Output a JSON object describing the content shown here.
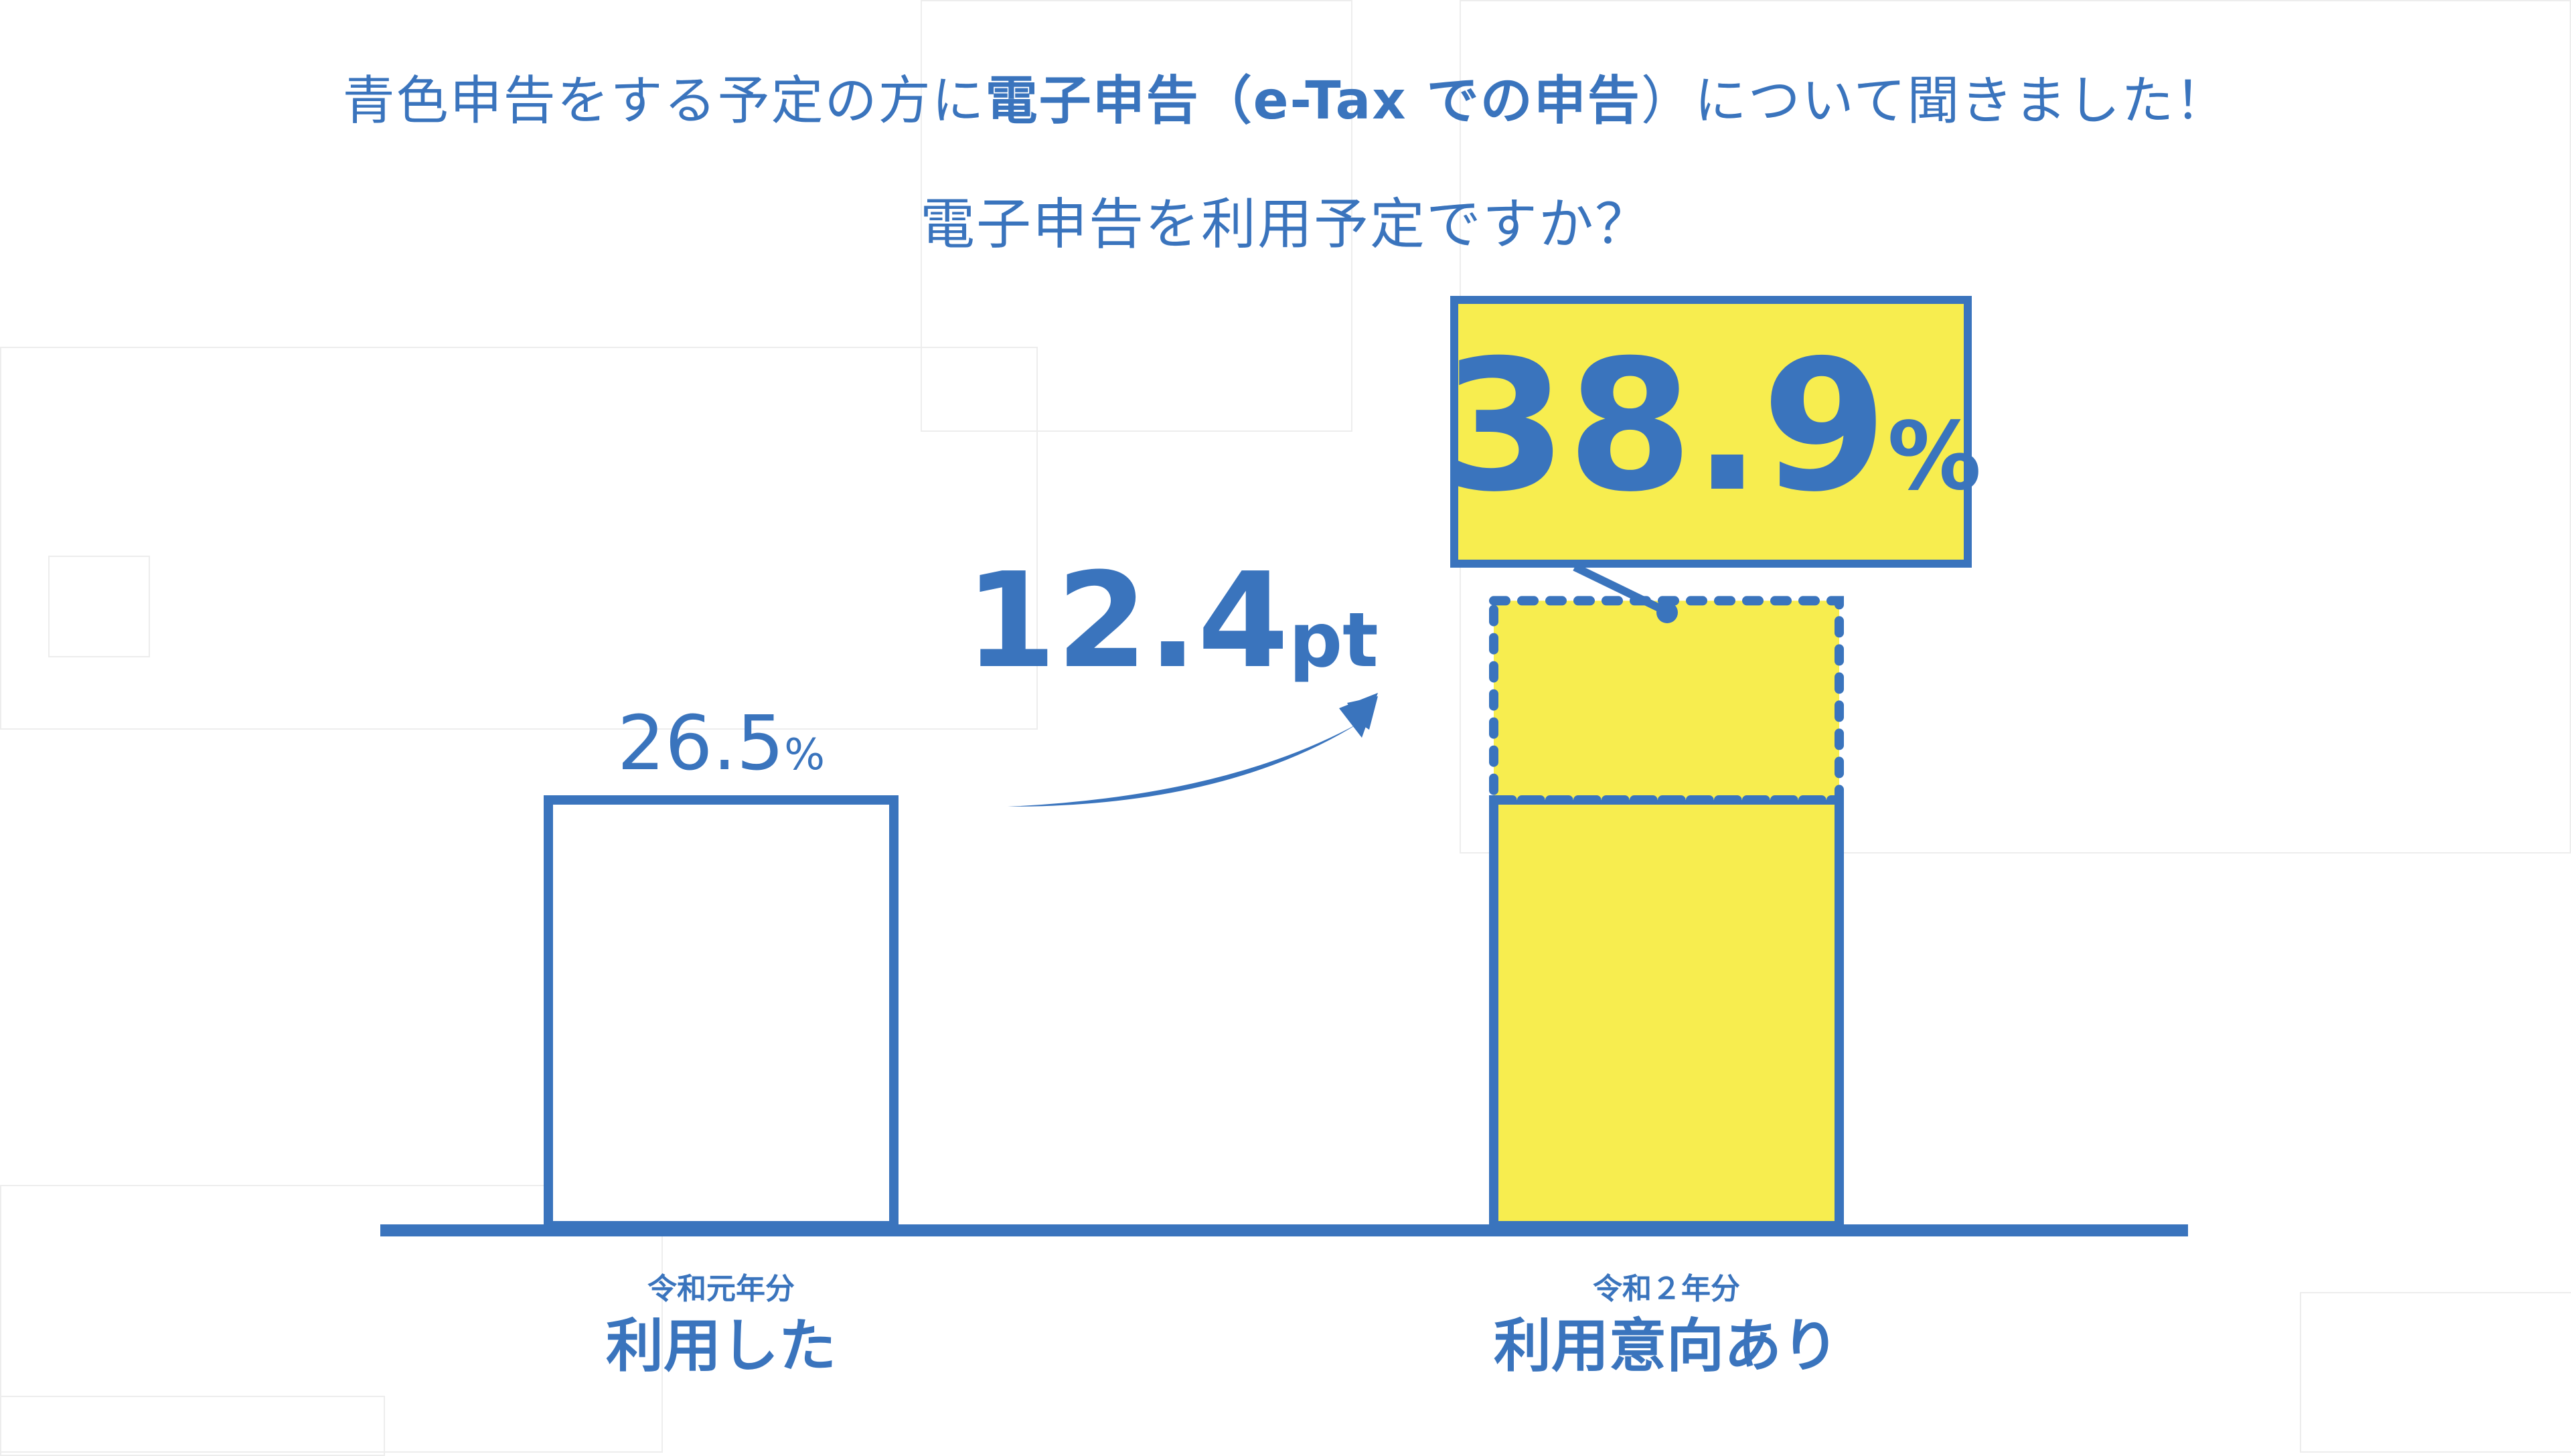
{
  "header": {
    "line1_before": "青色申告をする予定の方に",
    "line1_bold": "電子申告（e-Tax での申告",
    "line1_after": "）について聞きました！",
    "line2": "電子申告を利用予定ですか？"
  },
  "colors": {
    "blue": "#3a74bd",
    "yellow": "#f7ed4f",
    "white": "#ffffff"
  },
  "chart_data": {
    "type": "bar",
    "categories": [
      "令和元年分 利用した",
      "令和２年分 利用意向あり"
    ],
    "values": [
      26.5,
      38.9
    ],
    "unit": "%",
    "ylim": [
      0,
      50
    ],
    "bars": [
      {
        "period": "令和元年分",
        "label": "利用した",
        "value": 26.5,
        "value_text": "26.5",
        "unit": "%",
        "fill": "#ffffff"
      },
      {
        "period": "令和２年分",
        "label": "利用意向あり",
        "value": 38.9,
        "value_text": "38.9",
        "unit": "%",
        "fill": "#f7ed4f",
        "increase_from": 26.5
      }
    ],
    "difference": {
      "value": 12.4,
      "value_text": "12.4",
      "unit": "pt"
    }
  }
}
